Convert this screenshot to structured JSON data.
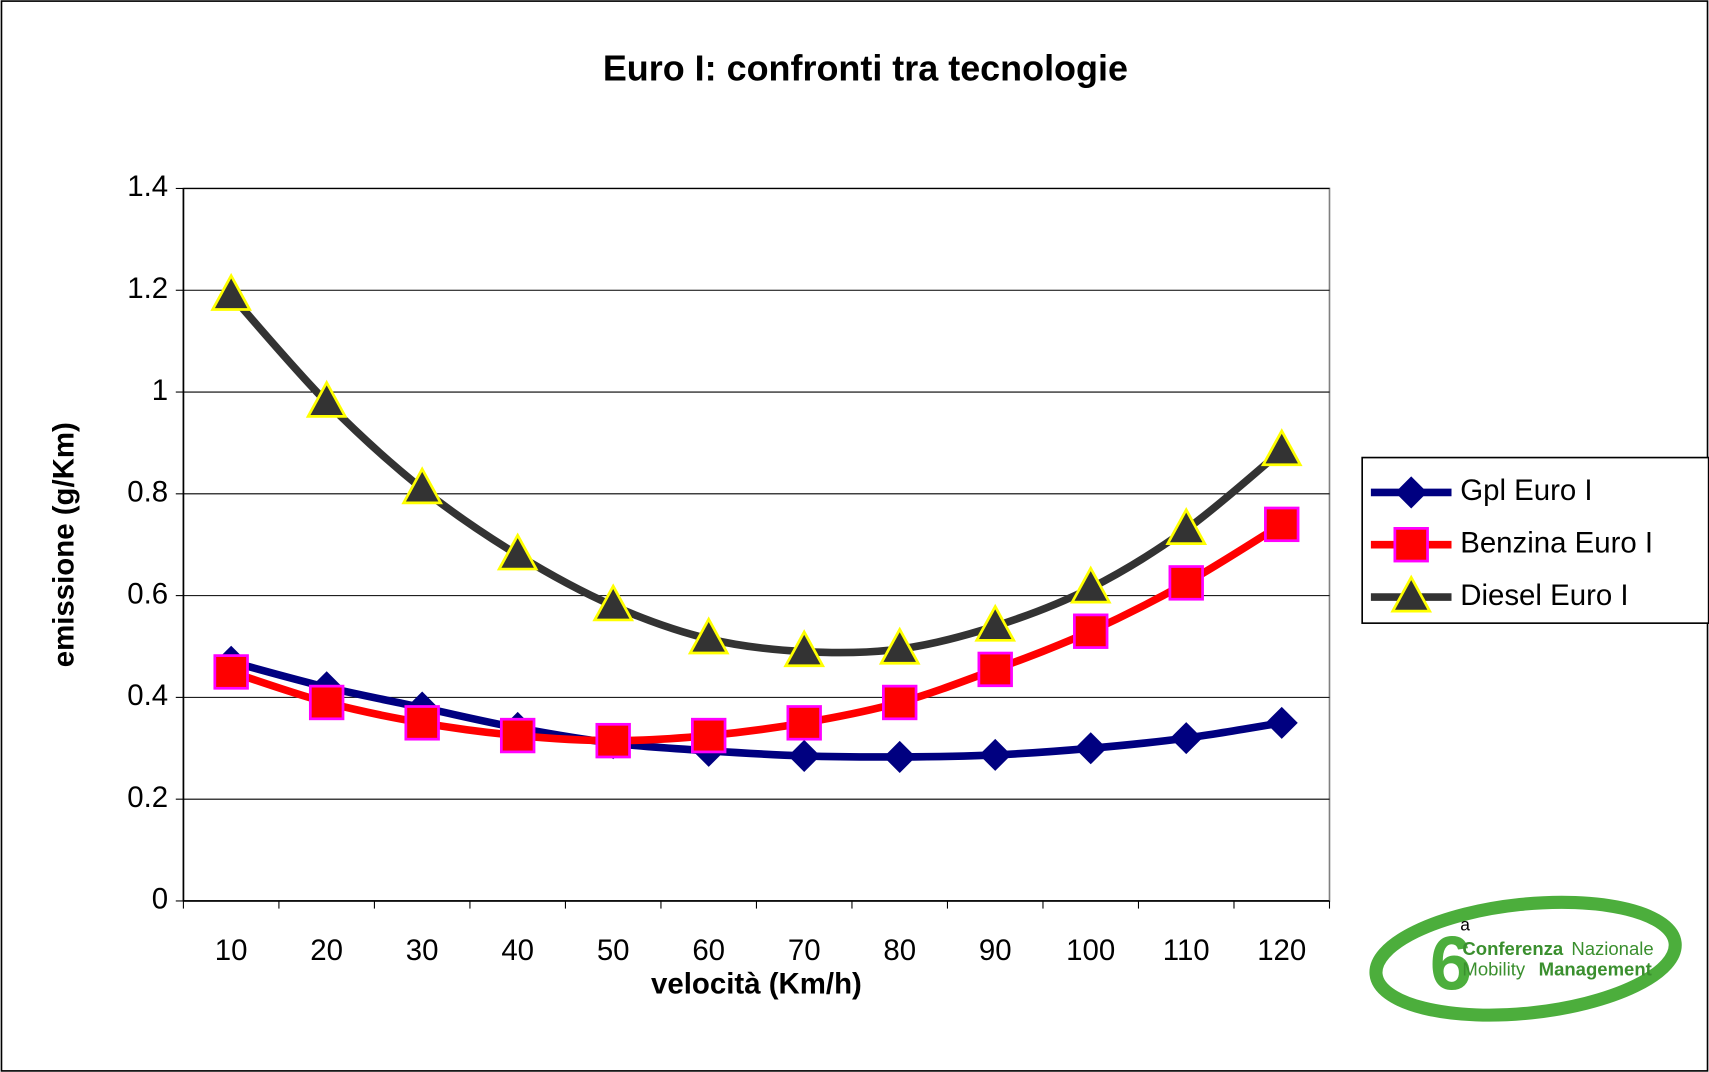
{
  "chart_data": {
    "type": "line",
    "title": "Euro I: confronti tra tecnologie",
    "x_label": "velocità (Km/h)",
    "y_label": "emissione (g/Km)",
    "categories": [
      10,
      20,
      30,
      40,
      50,
      60,
      70,
      80,
      90,
      100,
      110,
      120
    ],
    "ylim": [
      0,
      1.4
    ],
    "yticks": [
      0,
      0.2,
      0.4,
      0.6,
      0.8,
      1,
      1.2,
      1.4
    ],
    "grid": true,
    "legend": "right",
    "series": [
      {
        "name": "Gpl Euro I",
        "color": "#000080",
        "marker": "diamond",
        "values": [
          0.47,
          0.42,
          0.38,
          0.34,
          0.31,
          0.295,
          0.285,
          0.283,
          0.287,
          0.3,
          0.32,
          0.35
        ]
      },
      {
        "name": "Benzina Euro I",
        "color": "#ff0000",
        "marker": "square",
        "values": [
          0.45,
          0.39,
          0.35,
          0.325,
          0.315,
          0.325,
          0.35,
          0.39,
          0.455,
          0.53,
          0.625,
          0.74
        ]
      },
      {
        "name": "Diesel Euro I",
        "color": "#333333",
        "marker": "triangle",
        "values": [
          1.19,
          0.98,
          0.81,
          0.68,
          0.58,
          0.515,
          0.49,
          0.495,
          0.54,
          0.615,
          0.73,
          0.885
        ]
      }
    ]
  },
  "logo": {
    "number": "6",
    "superscript": "a",
    "line1_bold": "Conferenza",
    "line1": "Nazionale",
    "line2": "Mobility",
    "line2_bold": "Management"
  }
}
